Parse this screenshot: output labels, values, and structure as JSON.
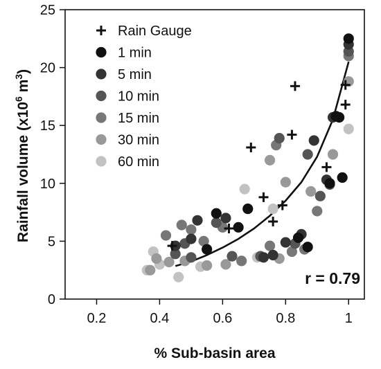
{
  "chart_data": {
    "type": "scatter",
    "xlabel": "% Sub-basin area",
    "ylabel_main": "Rainfall volume (x10",
    "ylabel_exp": "6",
    "ylabel_tail": " m",
    "ylabel_unit_exp": "3",
    "ylabel_close": ")",
    "xlim": [
      0.1,
      1.05
    ],
    "ylim": [
      0,
      25
    ],
    "xticks": [
      0.2,
      0.4,
      0.6,
      0.8,
      1
    ],
    "xtick_labels": [
      "0.2",
      "0.4",
      "0.6",
      "0.8",
      "1"
    ],
    "yticks": [
      0,
      5,
      10,
      15,
      20,
      25
    ],
    "ytick_labels": [
      "0",
      "5",
      "10",
      "15",
      "20",
      "25"
    ],
    "annotation": "r = 0.79",
    "legend_position": "top-left",
    "fit_curve": {
      "type": "exponential",
      "x": [
        0.45,
        0.5,
        0.55,
        0.6,
        0.65,
        0.7,
        0.75,
        0.8,
        0.85,
        0.9,
        0.95,
        1.0
      ],
      "y": [
        2.85,
        3.25,
        3.8,
        4.45,
        5.2,
        6.1,
        7.2,
        8.5,
        10.1,
        12.3,
        15.5,
        20.5
      ]
    },
    "series": [
      {
        "name": "Rain Gauge",
        "marker": "plus",
        "color": "#111111",
        "points": [
          [
            0.44,
            4.6
          ],
          [
            0.62,
            6.1
          ],
          [
            0.69,
            13.1
          ],
          [
            0.73,
            8.8
          ],
          [
            0.76,
            6.7
          ],
          [
            0.79,
            8.1
          ],
          [
            0.82,
            14.2
          ],
          [
            0.83,
            18.4
          ],
          [
            0.93,
            11.4
          ],
          [
            0.99,
            16.8
          ],
          [
            0.99,
            18.5
          ]
        ]
      },
      {
        "name": "1 min",
        "marker": "circle",
        "color": "#111111",
        "points": [
          [
            0.55,
            4.3
          ],
          [
            0.58,
            7.4
          ],
          [
            0.65,
            6.2
          ],
          [
            0.68,
            7.8
          ],
          [
            0.84,
            5.3
          ],
          [
            0.87,
            4.5
          ],
          [
            0.94,
            10.0
          ],
          [
            0.96,
            15.8
          ],
          [
            0.97,
            15.7
          ],
          [
            0.98,
            10.5
          ],
          [
            1.0,
            22.5
          ]
        ]
      },
      {
        "name": "5 min",
        "marker": "circle",
        "color": "#333333",
        "points": [
          [
            0.45,
            4.6
          ],
          [
            0.5,
            5.2
          ],
          [
            0.52,
            6.8
          ],
          [
            0.61,
            7.0
          ],
          [
            0.73,
            3.6
          ],
          [
            0.76,
            3.8
          ],
          [
            0.8,
            4.9
          ],
          [
            0.85,
            5.6
          ],
          [
            0.89,
            13.7
          ],
          [
            0.93,
            10.3
          ],
          [
            0.95,
            15.7
          ],
          [
            1.0,
            22.0
          ]
        ]
      },
      {
        "name": "10 min",
        "marker": "circle",
        "color": "#555555",
        "points": [
          [
            0.45,
            3.9
          ],
          [
            0.48,
            4.8
          ],
          [
            0.5,
            3.6
          ],
          [
            0.58,
            6.6
          ],
          [
            0.63,
            3.7
          ],
          [
            0.72,
            3.7
          ],
          [
            0.78,
            13.9
          ],
          [
            0.83,
            4.8
          ],
          [
            0.87,
            12.5
          ],
          [
            0.91,
            8.9
          ],
          [
            0.94,
            9.9
          ],
          [
            1.0,
            21.4
          ]
        ]
      },
      {
        "name": "15 min",
        "marker": "circle",
        "color": "#777777",
        "points": [
          [
            0.42,
            5.5
          ],
          [
            0.47,
            6.4
          ],
          [
            0.5,
            6.0
          ],
          [
            0.54,
            5.0
          ],
          [
            0.6,
            6.2
          ],
          [
            0.66,
            3.3
          ],
          [
            0.75,
            4.6
          ],
          [
            0.77,
            13.3
          ],
          [
            0.82,
            4.1
          ],
          [
            0.86,
            4.3
          ],
          [
            0.9,
            7.6
          ],
          [
            1.0,
            21.0
          ]
        ]
      },
      {
        "name": "30 min",
        "marker": "circle",
        "color": "#999999",
        "points": [
          [
            0.37,
            2.5
          ],
          [
            0.39,
            3.5
          ],
          [
            0.43,
            3.2
          ],
          [
            0.48,
            3.3
          ],
          [
            0.55,
            2.9
          ],
          [
            0.61,
            3.0
          ],
          [
            0.75,
            12.0
          ],
          [
            0.78,
            3.5
          ],
          [
            0.8,
            10.1
          ],
          [
            0.88,
            9.3
          ],
          [
            0.95,
            12.5
          ],
          [
            1.0,
            18.8
          ]
        ]
      },
      {
        "name": "60 min",
        "marker": "circle",
        "color": "#c2c2c2",
        "points": [
          [
            0.36,
            2.5
          ],
          [
            0.38,
            4.1
          ],
          [
            0.4,
            3.0
          ],
          [
            0.46,
            1.9
          ],
          [
            0.53,
            2.8
          ],
          [
            0.67,
            9.5
          ],
          [
            0.71,
            3.6
          ],
          [
            0.76,
            7.8
          ],
          [
            1.0,
            14.7
          ]
        ]
      }
    ]
  }
}
